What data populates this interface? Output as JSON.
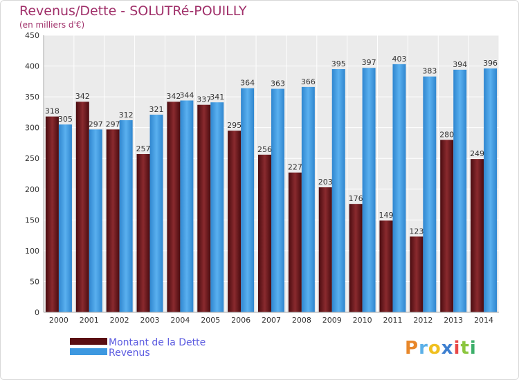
{
  "title": "Revenus/Dette - SOLUTRé-POUILLY",
  "subtitle": "(en milliers d'€)",
  "logo_text": "Proxiti",
  "colors": {
    "dette": "#7a1e22",
    "revenus": "#4aa3e8",
    "title": "#a0306a",
    "legend_text": "#5a5ae0"
  },
  "chart_data": {
    "type": "bar",
    "title": "Revenus/Dette - SOLUTRé-POUILLY",
    "subtitle": "(en milliers d'€)",
    "xlabel": "",
    "ylabel": "",
    "ylim": [
      0,
      450
    ],
    "ytick_step": 50,
    "grid": true,
    "legend_position": "bottom-left",
    "categories": [
      "2000",
      "2001",
      "2002",
      "2003",
      "2004",
      "2005",
      "2006",
      "2007",
      "2008",
      "2009",
      "2010",
      "2011",
      "2012",
      "2013",
      "2014"
    ],
    "series": [
      {
        "name": "Montant de la Dette",
        "values": [
          318,
          342,
          297,
          257,
          342,
          337,
          295,
          256,
          227,
          203,
          176,
          149,
          123,
          280,
          249
        ]
      },
      {
        "name": "Revenus",
        "values": [
          305,
          297,
          312,
          321,
          344,
          341,
          364,
          363,
          366,
          395,
          397,
          403,
          383,
          394,
          396
        ]
      }
    ]
  }
}
